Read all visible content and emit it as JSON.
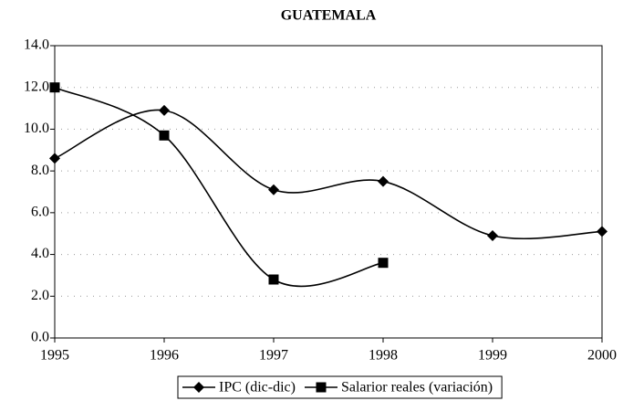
{
  "chart_data": {
    "type": "line",
    "title": "GUATEMALA",
    "x": [
      1995,
      1996,
      1997,
      1998,
      1999,
      2000
    ],
    "series": [
      {
        "name": "IPC (dic-dic)",
        "color": "#000000",
        "marker": "diamond",
        "values": [
          8.6,
          10.9,
          7.1,
          7.5,
          4.9,
          5.1
        ]
      },
      {
        "name": "Salarior reales (variación)",
        "color": "#000000",
        "marker": "square",
        "values": [
          12.0,
          9.7,
          2.8,
          3.6,
          null,
          null
        ]
      }
    ],
    "xlim": [
      1995,
      2000
    ],
    "xticks": [
      1995,
      1996,
      1997,
      1998,
      1999,
      2000
    ],
    "ylim": [
      0,
      14
    ],
    "yticks": [
      {
        "value": 0,
        "label": "0.0"
      },
      {
        "value": 2,
        "label": "2.0"
      },
      {
        "value": 4,
        "label": "4.0"
      },
      {
        "value": 6,
        "label": "6.0"
      },
      {
        "value": 8,
        "label": "8.0"
      },
      {
        "value": 10,
        "label": "10.0"
      },
      {
        "value": 12,
        "label": "12.0"
      },
      {
        "value": 14,
        "label": "14.0"
      }
    ],
    "grid": true,
    "legend": "bottom"
  }
}
